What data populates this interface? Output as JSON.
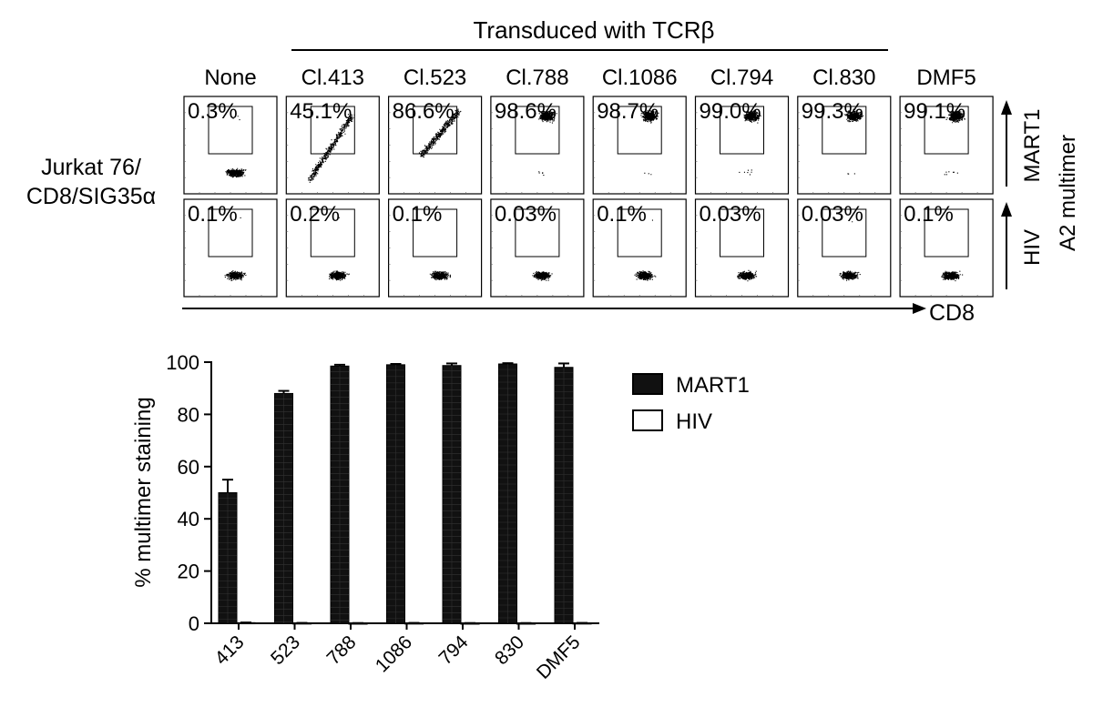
{
  "flow_panel": {
    "title": "Transduced with TCRβ",
    "row_label_line1": "Jurkat 76/",
    "row_label_line2": "CD8/SIG35α",
    "x_axis_label": "CD8",
    "y_axis_label": "A2 multimer",
    "columns": [
      "None",
      "Cl.413",
      "Cl.523",
      "Cl.788",
      "Cl.1086",
      "Cl.794",
      "Cl.830",
      "DMF5"
    ],
    "rows": [
      {
        "label": "MART1",
        "percents": [
          "0.3%",
          "45.1%",
          "86.6%",
          "98.6%",
          "98.7%",
          "99.0%",
          "99.3%",
          "99.1%"
        ]
      },
      {
        "label": "HIV",
        "percents": [
          "0.1%",
          "0.2%",
          "0.1%",
          "0.03%",
          "0.1%",
          "0.03%",
          "0.03%",
          "0.1%"
        ]
      }
    ]
  },
  "chart_data": {
    "type": "bar",
    "title": "",
    "xlabel": "",
    "ylabel": "% multimer staining",
    "categories": [
      "413",
      "523",
      "788",
      "1086",
      "794",
      "830",
      "DMF5"
    ],
    "ylim": [
      0,
      100
    ],
    "yticks": [
      "0",
      "20",
      "40",
      "60",
      "80",
      "100"
    ],
    "series": [
      {
        "name": "MART1",
        "values": [
          50,
          88,
          98.5,
          99,
          98.7,
          99.3,
          98
        ],
        "errors": [
          5,
          1,
          0.5,
          0.3,
          0.8,
          0.3,
          1.5
        ],
        "color": "#111111"
      },
      {
        "name": "HIV",
        "values": [
          0.2,
          0.1,
          0.05,
          0.1,
          0.05,
          0.05,
          0.1
        ],
        "errors": [
          0.1,
          0.05,
          0.05,
          0.05,
          0.05,
          0.05,
          0.05
        ],
        "color": "#ffffff"
      }
    ],
    "legend_position": "top-right"
  }
}
